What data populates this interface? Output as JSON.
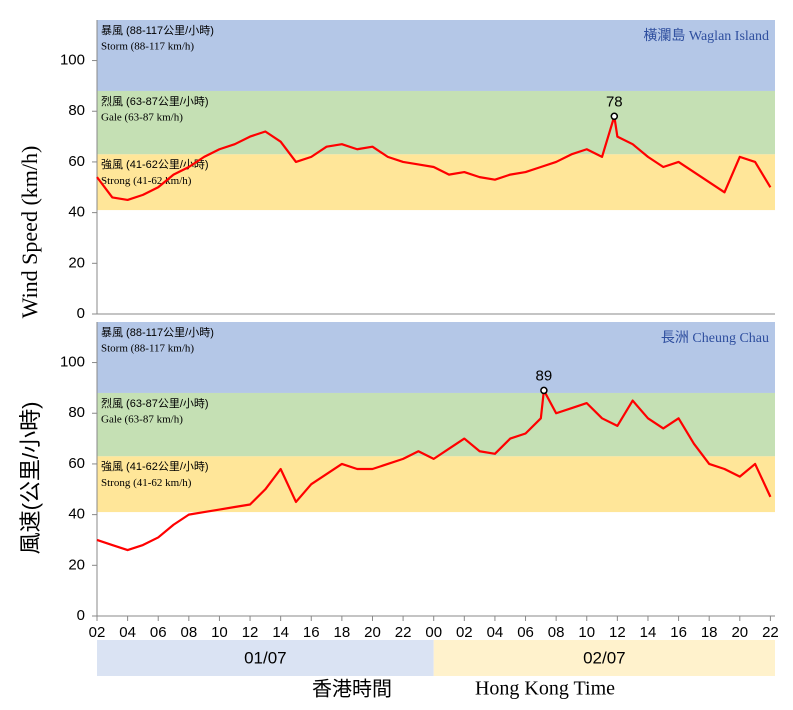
{
  "chart_data": [
    {
      "type": "line",
      "station": "橫瀾島 Waglan Island",
      "x": [
        2,
        3,
        4,
        5,
        6,
        7,
        8,
        9,
        10,
        11,
        12,
        13,
        14,
        15,
        16,
        17,
        18,
        19,
        20,
        21,
        22,
        23,
        24,
        25,
        26,
        27,
        28,
        29,
        30,
        31,
        32,
        33,
        34,
        35,
        35.8,
        36,
        37,
        38,
        39,
        40,
        41,
        42,
        43,
        44,
        45,
        46
      ],
      "series": [
        {
          "color": "#ff0000",
          "values": [
            54,
            46,
            45,
            47,
            50,
            55,
            58,
            62,
            65,
            67,
            70,
            72,
            68,
            60,
            62,
            66,
            67,
            65,
            66,
            62,
            60,
            59,
            58,
            55,
            56,
            54,
            53,
            55,
            56,
            58,
            60,
            63,
            65,
            62,
            78,
            70,
            67,
            62,
            58,
            60,
            56,
            52,
            48,
            62,
            60,
            50
          ]
        }
      ],
      "peak_index": 34,
      "xlim": [
        2,
        46.3
      ],
      "ylim": [
        0,
        116
      ],
      "yticks": [
        0,
        20,
        40,
        60,
        80,
        100
      ],
      "bands": [
        {
          "zh": "暴風 (88-117公里/小時)",
          "en": "Storm (88-117 km/h)",
          "from": 88,
          "to": 116,
          "color": "#b4c7e7"
        },
        {
          "zh": "烈風 (63-87公里/小時)",
          "en": "Gale (63-87 km/h)",
          "from": 63,
          "to": 88,
          "color": "#c5e0b4"
        },
        {
          "zh": "強風 (41-62公里/小時)",
          "en": "Strong (41-62 km/h)",
          "from": 41,
          "to": 63,
          "color": "#ffe699"
        }
      ]
    },
    {
      "type": "line",
      "station": "長洲 Cheung Chau",
      "x": [
        2,
        3,
        4,
        5,
        6,
        7,
        8,
        9,
        10,
        11,
        12,
        13,
        14,
        15,
        16,
        17,
        18,
        19,
        20,
        21,
        22,
        23,
        24,
        25,
        26,
        27,
        28,
        29,
        30,
        31,
        31.2,
        32,
        33,
        34,
        35,
        36,
        37,
        38,
        39,
        40,
        41,
        42,
        43,
        44,
        45,
        46
      ],
      "series": [
        {
          "color": "#ff0000",
          "values": [
            30,
            28,
            26,
            28,
            31,
            36,
            40,
            41,
            42,
            43,
            44,
            50,
            58,
            45,
            52,
            56,
            60,
            58,
            58,
            60,
            62,
            65,
            62,
            66,
            70,
            65,
            64,
            70,
            72,
            78,
            89,
            80,
            82,
            84,
            78,
            75,
            85,
            78,
            74,
            78,
            68,
            60,
            58,
            55,
            60,
            47
          ]
        }
      ],
      "peak_index": 30,
      "xlim": [
        2,
        46.3
      ],
      "ylim": [
        0,
        116
      ],
      "yticks": [
        0,
        20,
        40,
        60,
        80,
        100
      ],
      "xticks": [
        {
          "value": 2,
          "label": "02"
        },
        {
          "value": 4,
          "label": "04"
        },
        {
          "value": 6,
          "label": "06"
        },
        {
          "value": 8,
          "label": "08"
        },
        {
          "value": 10,
          "label": "10"
        },
        {
          "value": 12,
          "label": "12"
        },
        {
          "value": 14,
          "label": "14"
        },
        {
          "value": 16,
          "label": "16"
        },
        {
          "value": 18,
          "label": "18"
        },
        {
          "value": 20,
          "label": "20"
        },
        {
          "value": 22,
          "label": "22"
        },
        {
          "value": 24,
          "label": "00"
        },
        {
          "value": 26,
          "label": "02"
        },
        {
          "value": 28,
          "label": "04"
        },
        {
          "value": 30,
          "label": "06"
        },
        {
          "value": 32,
          "label": "08"
        },
        {
          "value": 34,
          "label": "10"
        },
        {
          "value": 36,
          "label": "12"
        },
        {
          "value": 38,
          "label": "14"
        },
        {
          "value": 40,
          "label": "16"
        },
        {
          "value": 42,
          "label": "18"
        },
        {
          "value": 44,
          "label": "20"
        },
        {
          "value": 46,
          "label": "22"
        }
      ],
      "bands": [
        {
          "zh": "暴風 (88-117公里/小時)",
          "en": "Storm (88-117 km/h)",
          "from": 88,
          "to": 116,
          "color": "#b4c7e7"
        },
        {
          "zh": "烈風 (63-87公里/小時)",
          "en": "Gale (63-87 km/h)",
          "from": 63,
          "to": 88,
          "color": "#c5e0b4"
        },
        {
          "zh": "強風 (41-62公里/小時)",
          "en": "Strong (41-62 km/h)",
          "from": 41,
          "to": 63,
          "color": "#ffe699"
        }
      ]
    }
  ],
  "y_label_en": "Wind Speed (km/h)",
  "y_label_zh": "風速(公里/小時)",
  "x_label_zh": "香港時間",
  "x_label_en": "Hong Kong Time",
  "days": [
    {
      "label": "01/07",
      "from": 2,
      "to": 24,
      "color": "#dae3f3"
    },
    {
      "label": "02/07",
      "from": 24,
      "to": 46.3,
      "color": "#fff2cc"
    }
  ]
}
